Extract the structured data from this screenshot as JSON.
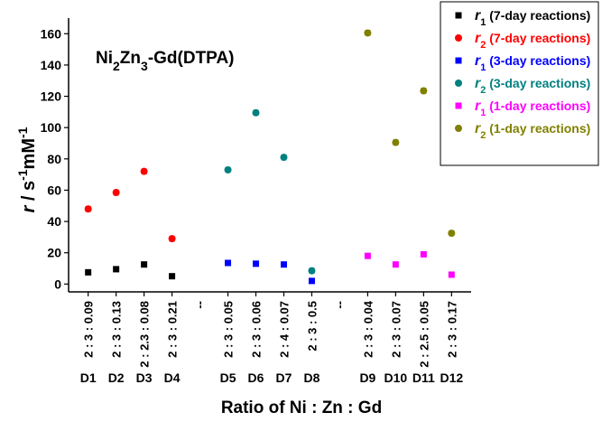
{
  "chart_data": {
    "type": "scatter",
    "title": {
      "main": "Ni",
      "parts": [
        {
          "t": "Ni",
          "sub": false
        },
        {
          "t": "2",
          "sub": true
        },
        {
          "t": "Zn",
          "sub": false
        },
        {
          "t": "3",
          "sub": true
        },
        {
          "t": "-Gd(DTPA)",
          "sub": false
        }
      ]
    },
    "xlabel": "Ratio of Ni : Zn : Gd",
    "ylabel": {
      "r": "r",
      "slash": " / s",
      "exp1": "-1",
      "mid": "mM",
      "exp2": "-1"
    },
    "ylim": [
      -5,
      170
    ],
    "yticks": [
      0,
      20,
      40,
      60,
      80,
      100,
      120,
      140,
      160
    ],
    "categories": [
      {
        "pos": 1,
        "ratio": "2 : 3 : 0.09",
        "id": "D1"
      },
      {
        "pos": 2,
        "ratio": "2 : 3 : 0.13",
        "id": "D2"
      },
      {
        "pos": 3,
        "ratio": "2 : 2.3 : 0.08",
        "id": "D3"
      },
      {
        "pos": 4,
        "ratio": "2 : 3 : 0.21",
        "id": "D4"
      },
      {
        "pos": 6,
        "ratio": "2 : 3 : 0.05",
        "id": "D5"
      },
      {
        "pos": 7,
        "ratio": "2 : 3 : 0.06",
        "id": "D6"
      },
      {
        "pos": 8,
        "ratio": "2 : 4 : 0.07",
        "id": "D7"
      },
      {
        "pos": 9,
        "ratio": "2 : 3 : 0.5",
        "id": "D8"
      },
      {
        "pos": 11,
        "ratio": "2 : 3 : 0.04",
        "id": "D9"
      },
      {
        "pos": 12,
        "ratio": "2 : 3 : 0.07",
        "id": "D10"
      },
      {
        "pos": 13,
        "ratio": "2 : 2.5 : 0.05",
        "id": "D11"
      },
      {
        "pos": 14,
        "ratio": "2 : 3 : 0.17",
        "id": "D12"
      }
    ],
    "breaks": [
      {
        "pos": 5,
        "label": "--"
      },
      {
        "pos": 10,
        "label": "--"
      }
    ],
    "series": [
      {
        "sym": "r",
        "sub": "1",
        "name": " (7-day reactions)",
        "color": "#000000",
        "marker": "square",
        "points": [
          {
            "x": 1,
            "y": 7.5,
            "err": 1.5
          },
          {
            "x": 2,
            "y": 9.5,
            "err": 1.5
          },
          {
            "x": 3,
            "y": 12.5,
            "err": 1.5
          },
          {
            "x": 4,
            "y": 5,
            "err": 1.5
          }
        ]
      },
      {
        "sym": "r",
        "sub": "2",
        "name": " (7-day reactions)",
        "color": "#ff0000",
        "marker": "circle",
        "points": [
          {
            "x": 1,
            "y": 48,
            "err": 1.5
          },
          {
            "x": 2,
            "y": 58.5,
            "err": 1.5
          },
          {
            "x": 3,
            "y": 72,
            "err": 1.5
          },
          {
            "x": 4,
            "y": 29,
            "err": 1.5
          }
        ]
      },
      {
        "sym": "r",
        "sub": "1",
        "name": " (3-day reactions)",
        "color": "#0000ff",
        "marker": "square",
        "points": [
          {
            "x": 6,
            "y": 13.5,
            "err": 1.5
          },
          {
            "x": 7,
            "y": 13,
            "err": 1.5
          },
          {
            "x": 8,
            "y": 12.5,
            "err": 1.5
          },
          {
            "x": 9,
            "y": 2,
            "err": 1.5
          }
        ]
      },
      {
        "sym": "r",
        "sub": "2",
        "name": " (3-day reactions)",
        "color": "#008080",
        "marker": "circle",
        "points": [
          {
            "x": 6,
            "y": 73,
            "err": 1.5
          },
          {
            "x": 7,
            "y": 109.5,
            "err": 1.5
          },
          {
            "x": 8,
            "y": 81,
            "err": 1.5
          },
          {
            "x": 9,
            "y": 8.5,
            "err": 1.5
          }
        ]
      },
      {
        "sym": "r",
        "sub": "1",
        "name": " (1-day reactions)",
        "color": "#ff00ff",
        "marker": "square",
        "points": [
          {
            "x": 11,
            "y": 18,
            "err": 1.5
          },
          {
            "x": 12,
            "y": 12.5,
            "err": 1.5
          },
          {
            "x": 13,
            "y": 19,
            "err": 1.5
          },
          {
            "x": 14,
            "y": 6,
            "err": 1.5
          }
        ]
      },
      {
        "sym": "r",
        "sub": "2",
        "name": " (1-day reactions)",
        "color": "#808000",
        "marker": "circle",
        "points": [
          {
            "x": 11,
            "y": 160.5,
            "err": 1.5
          },
          {
            "x": 12,
            "y": 90.5,
            "err": 1.5
          },
          {
            "x": 13,
            "y": 123.5,
            "err": 1.5
          },
          {
            "x": 14,
            "y": 32.5,
            "err": 1.5
          }
        ]
      }
    ]
  }
}
